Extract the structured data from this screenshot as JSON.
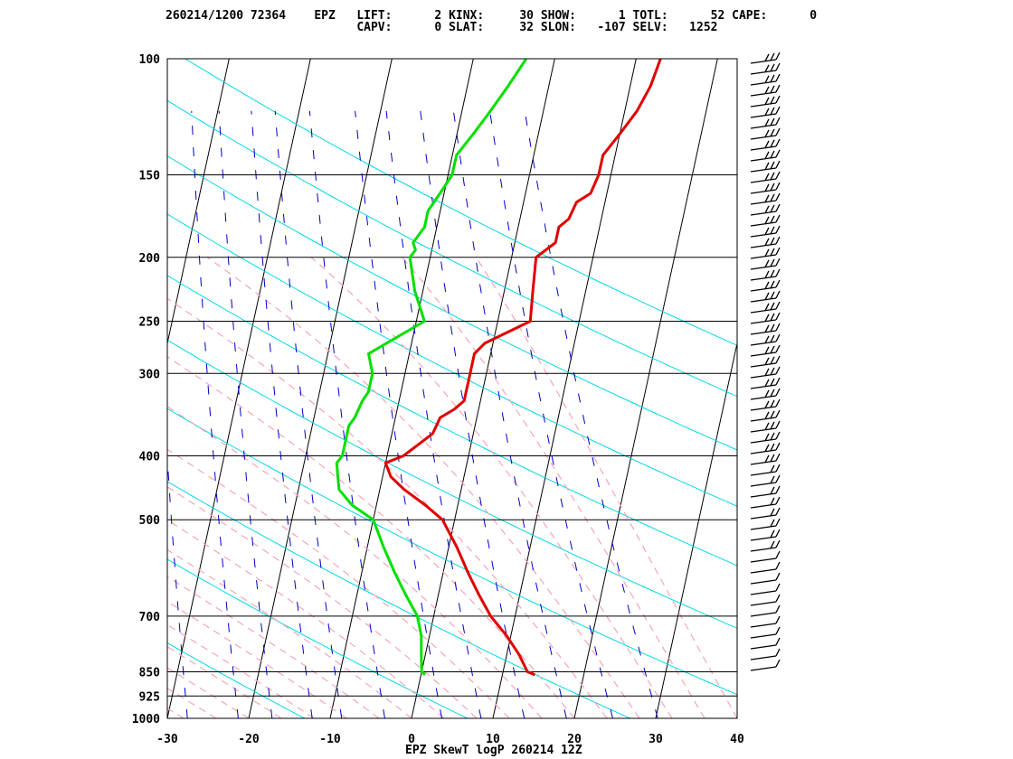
{
  "header": {
    "line1": "260214/1200 72364    EPZ   LIFT:      2 KINX:     30 SHOW:      1 TOTL:      52 CAPE:      0",
    "line2": "                           CAPV:      0 SLAT:     32 SLON:   -107 SELV:   1252"
  },
  "chart_data": {
    "type": "line",
    "title": "EPZ SkewT logP 260214 12Z",
    "xlabel": "",
    "ylabel": "",
    "xlim": [
      -30,
      40
    ],
    "ylim": [
      1000,
      100
    ],
    "y_scale": "log-pressure",
    "grid": true,
    "isobars": [
      100,
      150,
      200,
      250,
      300,
      400,
      500,
      700,
      850,
      925,
      1000
    ],
    "pressure_tick_labels": [
      "100",
      "150",
      "200",
      "250",
      "300",
      "400",
      "500",
      "700",
      "850",
      "925",
      "1000"
    ],
    "temperature_tick_labels": [
      "-30",
      "-20",
      "-10",
      "0",
      "10",
      "20",
      "30",
      "40"
    ],
    "series": [
      {
        "color": "#e00000",
        "points": [
          [
            859,
            14.0
          ],
          [
            850,
            13.0
          ],
          [
            800,
            11.5
          ],
          [
            750,
            9.5
          ],
          [
            700,
            7.0
          ],
          [
            650,
            5.0
          ],
          [
            600,
            3.0
          ],
          [
            550,
            1.0
          ],
          [
            500,
            -1.5
          ],
          [
            475,
            -4.0
          ],
          [
            450,
            -7.0
          ],
          [
            430,
            -9.0
          ],
          [
            410,
            -10.0
          ],
          [
            400,
            -8.0
          ],
          [
            380,
            -6.0
          ],
          [
            370,
            -5.0
          ],
          [
            350,
            -4.5
          ],
          [
            340,
            -3.0
          ],
          [
            330,
            -2.0
          ],
          [
            320,
            -2.0
          ],
          [
            300,
            -2.0
          ],
          [
            280,
            -2.0
          ],
          [
            270,
            -1.0
          ],
          [
            250,
            4.0
          ],
          [
            225,
            3.5
          ],
          [
            200,
            3.0
          ],
          [
            190,
            5.0
          ],
          [
            180,
            5.0
          ],
          [
            175,
            6.0
          ],
          [
            165,
            6.5
          ],
          [
            160,
            8.0
          ],
          [
            150,
            8.5
          ],
          [
            140,
            8.5
          ],
          [
            130,
            10.0
          ],
          [
            120,
            11.5
          ],
          [
            110,
            12.5
          ],
          [
            100,
            13.0
          ]
        ]
      },
      {
        "color": "#00e000",
        "points": [
          [
            859,
            0.5
          ],
          [
            850,
            0.0
          ],
          [
            800,
            -0.5
          ],
          [
            750,
            -1.0
          ],
          [
            700,
            -2.0
          ],
          [
            650,
            -4.0
          ],
          [
            600,
            -6.0
          ],
          [
            550,
            -8.0
          ],
          [
            500,
            -10.0
          ],
          [
            475,
            -13.0
          ],
          [
            450,
            -15.0
          ],
          [
            430,
            -15.5
          ],
          [
            410,
            -16.0
          ],
          [
            400,
            -15.5
          ],
          [
            380,
            -15.5
          ],
          [
            360,
            -15.5
          ],
          [
            350,
            -15.0
          ],
          [
            330,
            -14.5
          ],
          [
            320,
            -14.0
          ],
          [
            300,
            -14.0
          ],
          [
            280,
            -15.0
          ],
          [
            250,
            -9.0
          ],
          [
            225,
            -11.0
          ],
          [
            200,
            -12.5
          ],
          [
            195,
            -12.0
          ],
          [
            190,
            -12.5
          ],
          [
            180,
            -11.5
          ],
          [
            170,
            -11.5
          ],
          [
            160,
            -10.5
          ],
          [
            150,
            -9.5
          ],
          [
            140,
            -9.5
          ],
          [
            130,
            -8.0
          ],
          [
            120,
            -6.5
          ],
          [
            110,
            -5.0
          ],
          [
            100,
            -3.5
          ]
        ]
      }
    ]
  },
  "colors": {
    "temperature": "#e00000",
    "dewpoint": "#00e000",
    "isotherm": "#000000",
    "dry_adiabat": "#00d8e8",
    "moist_adiabat": "#f4a6b4",
    "mixing_ratio": "#0000c8",
    "wind_barb": "#000000"
  }
}
